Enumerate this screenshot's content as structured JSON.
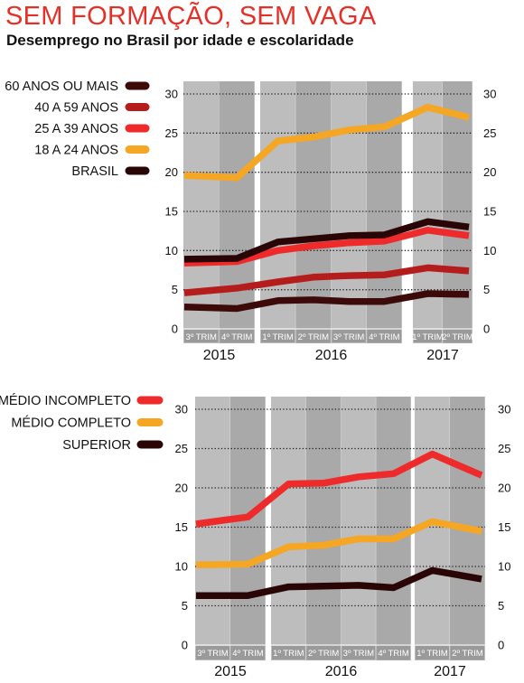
{
  "title": "SEM FORMAÇÃO, SEM VAGA",
  "subtitle": "Desemprego no Brasil por idade e escolaridade",
  "colors": {
    "title": "#e63027",
    "band_light": "#bdbdbd",
    "band_dark": "#a9a9a9",
    "label_bg": "#9a9a9a",
    "gridline": "#222222"
  },
  "chart_data": [
    {
      "type": "line",
      "title": "",
      "xlabel": "",
      "ylabel": "",
      "ylim": [
        0,
        30
      ],
      "y_ticks": [
        0,
        5,
        10,
        15,
        20,
        25,
        30
      ],
      "grid": true,
      "legend_position": "top-left",
      "quarters": [
        "3º TRIM",
        "4º TRIM",
        "1º TRIM",
        "2º TRIM",
        "3º TRIM",
        "4º TRIM",
        "1º TRIM",
        "2º TRIM"
      ],
      "years": [
        {
          "label": "2015",
          "quarters": 2
        },
        {
          "label": "2016",
          "quarters": 4
        },
        {
          "label": "2017",
          "quarters": 2
        }
      ],
      "series": [
        {
          "name": "60 ANOS OU MAIS",
          "color": "#3d0a0a",
          "values": [
            2.8,
            2.6,
            3.6,
            3.7,
            3.5,
            3.5,
            4.5,
            4.4
          ]
        },
        {
          "name": "40 A 59 ANOS",
          "color": "#b51c1c",
          "values": [
            4.6,
            5.2,
            6.0,
            6.6,
            6.8,
            6.9,
            7.8,
            7.4
          ]
        },
        {
          "name": "25 A 39 ANOS",
          "color": "#ee2a2a",
          "values": [
            8.4,
            8.6,
            10.0,
            10.6,
            11.0,
            11.2,
            12.6,
            11.9
          ]
        },
        {
          "name": "18 A 24 ANOS",
          "color": "#f5a623",
          "values": [
            19.6,
            19.3,
            24.0,
            24.5,
            25.4,
            25.8,
            28.3,
            27.0
          ]
        },
        {
          "name": "BRASIL",
          "color": "#2a0505",
          "values": [
            8.9,
            9.0,
            11.1,
            11.5,
            11.9,
            12.0,
            13.7,
            13.0
          ]
        }
      ]
    },
    {
      "type": "line",
      "title": "",
      "xlabel": "",
      "ylabel": "",
      "ylim": [
        0,
        30
      ],
      "y_ticks": [
        0,
        5,
        10,
        15,
        20,
        25,
        30
      ],
      "grid": true,
      "legend_position": "top-left",
      "quarters": [
        "3º TRIM",
        "4º TRIM",
        "1º TRIM",
        "2º TRIM",
        "3º TRIM",
        "4º TRIM",
        "1º TRIM",
        "2º TRIM"
      ],
      "years": [
        {
          "label": "2015",
          "quarters": 2
        },
        {
          "label": "2016",
          "quarters": 4
        },
        {
          "label": "2017",
          "quarters": 2
        }
      ],
      "series": [
        {
          "name": "MÉDIO INCOMPLETO",
          "color": "#ee2a2a",
          "values": [
            15.4,
            16.3,
            20.5,
            20.6,
            21.4,
            21.8,
            24.3,
            21.6
          ]
        },
        {
          "name": "MÉDIO COMPLETO",
          "color": "#f5a623",
          "values": [
            10.2,
            10.3,
            12.5,
            12.7,
            13.5,
            13.5,
            15.7,
            14.5
          ]
        },
        {
          "name": "SUPERIOR",
          "color": "#2a0505",
          "values": [
            6.3,
            6.3,
            7.4,
            7.5,
            7.6,
            7.3,
            9.5,
            8.4
          ]
        }
      ]
    }
  ]
}
